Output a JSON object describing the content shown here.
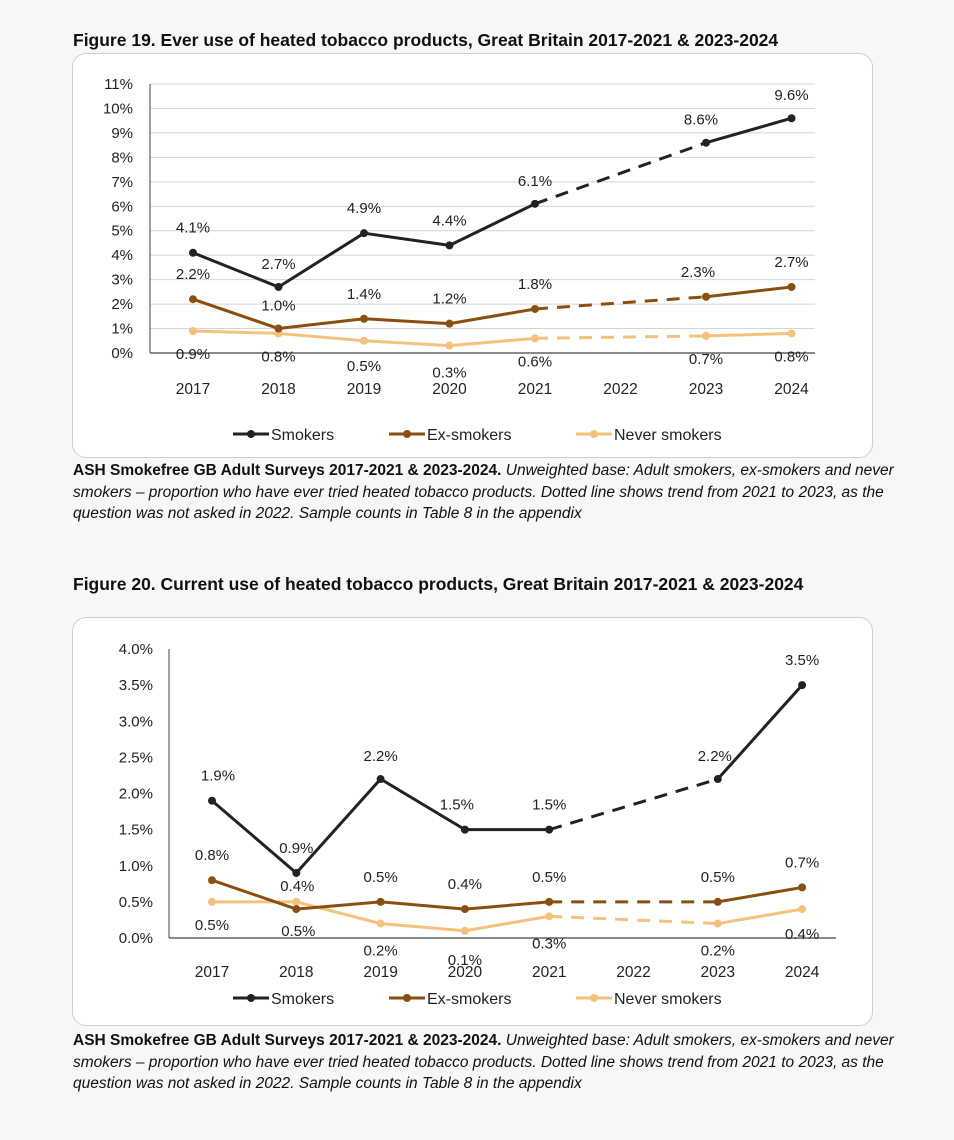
{
  "figures": [
    {
      "title": "Figure 19. Ever use of heated tobacco products, Great Britain 2017-2021 & 2023-2024",
      "caption_source": "ASH Smokefree GB Adult Surveys 2017-2021 & 2023-2024.",
      "caption_text": "Unweighted base: Adult smokers, ex-smokers and never smokers – proportion who have ever tried heated tobacco products. Dotted line shows trend from 2021 to 2023, as the question was not asked in 2022. Sample counts in Table 8 in the appendix"
    },
    {
      "title": "Figure 20. Current use of heated tobacco products, Great Britain 2017-2021 & 2023-2024",
      "caption_source": "ASH Smokefree GB Adult Surveys 2017-2021 & 2023-2024.",
      "caption_text": "Unweighted base: Adult smokers, ex-smokers and never smokers – proportion who have ever tried heated tobacco products. Dotted line shows trend from 2021 to 2023, as the question was not asked in 2022. Sample counts in Table 8 in the appendix"
    }
  ],
  "chart_data": [
    {
      "type": "line",
      "title": "Figure 19. Ever use of heated tobacco products, Great Britain 2017-2021 & 2023-2024",
      "categories": [
        "2017",
        "2018",
        "2019",
        "2020",
        "2021",
        "2022",
        "2023",
        "2024"
      ],
      "yticks": [
        "0%",
        "1%",
        "2%",
        "3%",
        "4%",
        "5%",
        "6%",
        "7%",
        "8%",
        "9%",
        "10%",
        "11%"
      ],
      "ylim": [
        0,
        11
      ],
      "grid": true,
      "legend_position": "bottom",
      "series": [
        {
          "name": "Smokers",
          "color": "#222222",
          "values": [
            4.1,
            2.7,
            4.9,
            4.4,
            6.1,
            null,
            8.6,
            9.6
          ],
          "labels": [
            "4.1%",
            "2.7%",
            "4.9%",
            "4.4%",
            "6.1%",
            null,
            "8.6%",
            "9.6%"
          ]
        },
        {
          "name": "Ex-smokers",
          "color": "#8a4f10",
          "values": [
            2.2,
            1.0,
            1.4,
            1.2,
            1.8,
            null,
            2.3,
            2.7
          ],
          "labels": [
            "2.2%",
            "1.0%",
            "1.4%",
            "1.2%",
            "1.8%",
            null,
            "2.3%",
            "2.7%"
          ]
        },
        {
          "name": "Never smokers",
          "color": "#f5c27e",
          "values": [
            0.9,
            0.8,
            0.5,
            0.3,
            0.6,
            null,
            0.7,
            0.8
          ],
          "labels": [
            "0.9%",
            "0.8%",
            "0.5%",
            "0.3%",
            "0.6%",
            null,
            "0.7%",
            "0.8%"
          ]
        }
      ]
    },
    {
      "type": "line",
      "title": "Figure 20. Current use of heated tobacco products, Great Britain 2017-2021 & 2023-2024",
      "categories": [
        "2017",
        "2018",
        "2019",
        "2020",
        "2021",
        "2022",
        "2023",
        "2024"
      ],
      "yticks": [
        "0.0%",
        "0.5%",
        "1.0%",
        "1.5%",
        "2.0%",
        "2.5%",
        "3.0%",
        "3.5%",
        "4.0%"
      ],
      "ylim": [
        0,
        4
      ],
      "grid": false,
      "legend_position": "bottom",
      "series": [
        {
          "name": "Smokers",
          "color": "#222222",
          "values": [
            1.9,
            0.9,
            2.2,
            1.5,
            1.5,
            null,
            2.2,
            3.5
          ],
          "labels": [
            "1.9%",
            "0.9%",
            "2.2%",
            "1.5%",
            "1.5%",
            null,
            "2.2%",
            "3.5%"
          ]
        },
        {
          "name": "Ex-smokers",
          "color": "#8a4f10",
          "values": [
            0.8,
            0.4,
            0.5,
            0.4,
            0.5,
            null,
            0.5,
            0.7
          ],
          "labels": [
            "0.8%",
            "0.4%",
            "0.5%",
            "0.4%",
            "0.5%",
            null,
            "0.5%",
            "0.7%"
          ]
        },
        {
          "name": "Never smokers",
          "color": "#f5c27e",
          "values": [
            0.5,
            0.5,
            0.2,
            0.1,
            0.3,
            null,
            0.2,
            0.4
          ],
          "labels": [
            "0.5%",
            "0.5%",
            "0.2%",
            "0.1%",
            "0.3%",
            null,
            "0.2%",
            "0.4%"
          ]
        }
      ]
    }
  ]
}
